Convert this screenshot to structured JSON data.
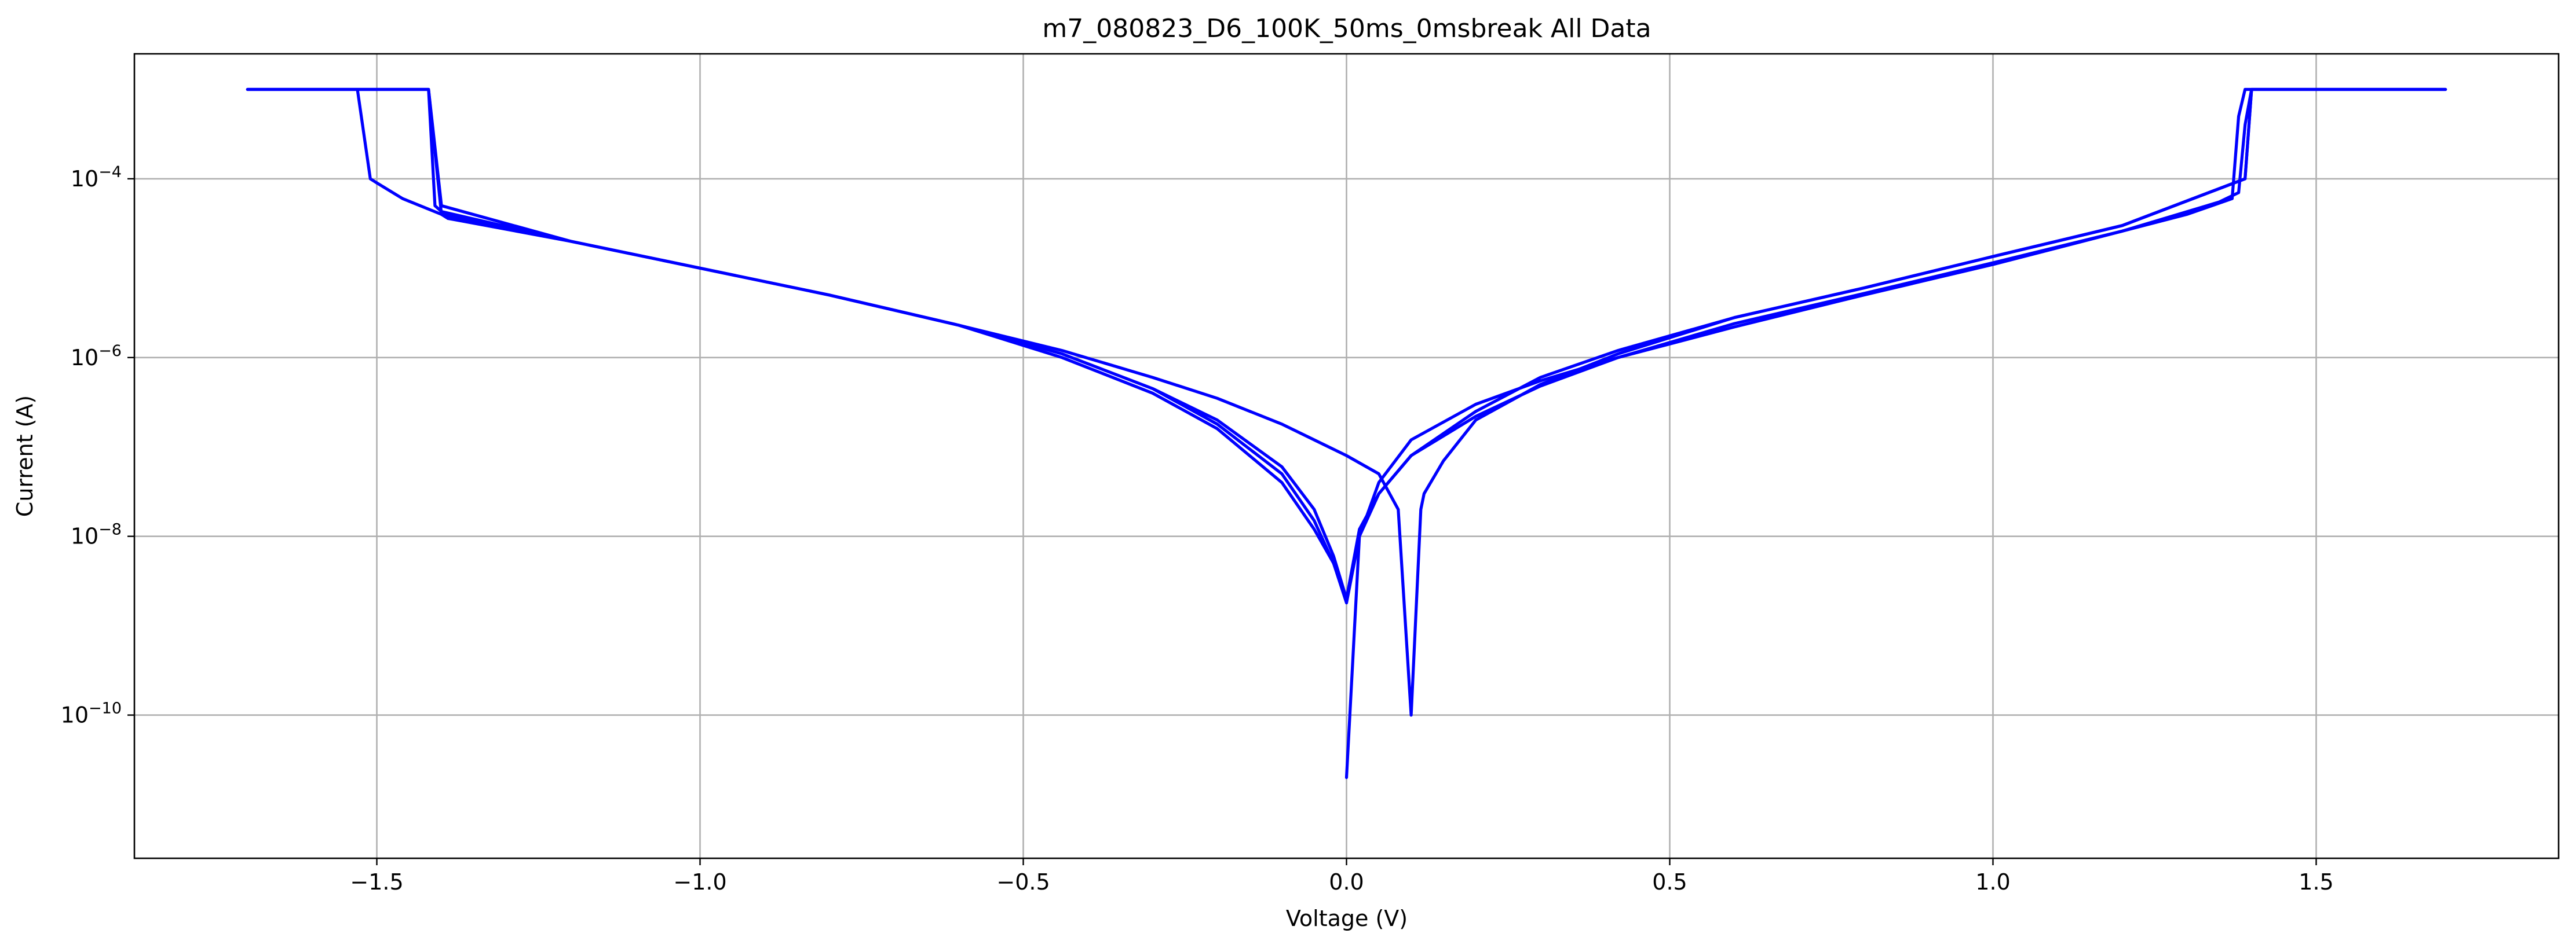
{
  "chart_data": {
    "type": "line",
    "title": "m7_080823_D6_100K_50ms_0msbreak All Data",
    "xlabel": "Voltage (V)",
    "ylabel": "Current (A)",
    "xlim": [
      -1.875,
      1.875
    ],
    "ylim": [
      2.5e-12,
      0.0025
    ],
    "yscale": "log",
    "grid": true,
    "x_ticks": [
      -1.5,
      -1.0,
      -0.5,
      0.0,
      0.5,
      1.0,
      1.5
    ],
    "x_tick_labels": [
      "−1.5",
      "−1.0",
      "−0.5",
      "0.0",
      "0.5",
      "1.0",
      "1.5"
    ],
    "y_ticks": [
      {
        "value": 1e-10,
        "base": "10",
        "exponent": "−10"
      },
      {
        "value": 1e-08,
        "base": "10",
        "exponent": "−8"
      },
      {
        "value": 1e-06,
        "base": "10",
        "exponent": "−6"
      },
      {
        "value": 0.0001,
        "base": "10",
        "exponent": "−4"
      }
    ],
    "series": [
      {
        "color": "#0000ff",
        "x": [
          0.0,
          0.02,
          0.05,
          0.1,
          0.2,
          0.3,
          0.42,
          0.6,
          0.8,
          1.0,
          1.2,
          1.35,
          1.38,
          1.39,
          1.4,
          1.5,
          1.6,
          1.7,
          1.6,
          1.5,
          1.4,
          1.39,
          1.2,
          1.0,
          0.8,
          0.6,
          0.42,
          0.3,
          0.2,
          0.15,
          0.12,
          0.115,
          0.1,
          0.08,
          0.05,
          0.0,
          -0.05,
          -0.1,
          -0.2,
          -0.3,
          -0.44,
          -0.6,
          -0.8,
          -1.0,
          -1.2,
          -1.4,
          -1.46,
          -1.5,
          -1.51,
          -1.53,
          -1.6,
          -1.7,
          -1.6,
          -1.5,
          -1.42,
          -1.4,
          -1.39,
          -1.2,
          -1.0,
          -0.8,
          -0.6,
          -0.44,
          -0.3,
          -0.2,
          -0.1,
          -0.05,
          -0.02,
          0.0
        ],
        "y": [
          1.8e-09,
          1e-08,
          3e-08,
          8e-08,
          2.2e-07,
          4.8e-07,
          1e-06,
          2.4e-06,
          5.2e-06,
          1.15e-05,
          2.6e-05,
          5.5e-05,
          7e-05,
          0.0004,
          0.001,
          0.001,
          0.001,
          0.001,
          0.001,
          0.001,
          0.001,
          0.0001,
          3e-05,
          1.35e-05,
          6e-06,
          2.8e-06,
          1.1e-06,
          5e-07,
          2e-07,
          7e-08,
          3e-08,
          2e-08,
          1e-10,
          2e-08,
          5e-08,
          8e-08,
          1.2e-07,
          1.8e-07,
          3.5e-07,
          6e-07,
          1.2e-06,
          2.3e-06,
          5e-06,
          1e-05,
          2e-05,
          4e-05,
          6e-05,
          9e-05,
          0.0001,
          0.001,
          0.001,
          0.001,
          0.001,
          0.001,
          0.001,
          4e-05,
          3.6e-05,
          2e-05,
          1e-05,
          5e-06,
          2.3e-06,
          1e-06,
          4e-07,
          1.6e-07,
          4e-08,
          1.2e-08,
          5e-09,
          1.8e-09
        ]
      },
      {
        "color": "#0000ff",
        "x": [
          0.0,
          0.02,
          0.05,
          0.1,
          0.2,
          0.3,
          0.42,
          0.6,
          0.8,
          1.0,
          1.2,
          1.3,
          1.37,
          1.38,
          1.39,
          1.4,
          1.5,
          1.6,
          1.7,
          1.6,
          1.5,
          1.4,
          1.39,
          1.2,
          1.0,
          0.8,
          0.6,
          0.42,
          0.3,
          0.2,
          0.1,
          0.05,
          0.02,
          0.0,
          -0.02,
          -0.05,
          -0.1,
          -0.2,
          -0.3,
          -0.44,
          -0.6,
          -0.8,
          -1.0,
          -1.2,
          -1.4,
          -1.41,
          -1.42,
          -1.46,
          -1.5,
          -1.6,
          -1.7,
          -1.6,
          -1.5,
          -1.46,
          -1.42,
          -1.4,
          -1.2,
          -1.0,
          -0.8,
          -0.6,
          -0.44,
          -0.3,
          -0.2,
          -0.1,
          -0.05,
          -0.02,
          0.0
        ],
        "y": [
          2e-11,
          1e-08,
          4e-08,
          1.2e-07,
          3e-07,
          5.5e-07,
          1e-06,
          2.2e-06,
          5e-06,
          1.1e-05,
          2.6e-05,
          4e-05,
          6e-05,
          0.0005,
          0.001,
          0.001,
          0.001,
          0.001,
          0.001,
          0.001,
          0.001,
          0.001,
          0.0001,
          3e-05,
          1.35e-05,
          6e-06,
          2.8e-06,
          1.2e-06,
          6e-07,
          2.5e-07,
          8e-08,
          3e-08,
          1.2e-08,
          2e-09,
          6e-09,
          2e-08,
          6e-08,
          2e-07,
          4.5e-07,
          1.1e-06,
          2.3e-06,
          5e-06,
          1e-05,
          2e-05,
          4.3e-05,
          5e-05,
          0.001,
          0.001,
          0.001,
          0.001,
          0.001,
          0.001,
          0.001,
          0.001,
          0.001,
          5e-05,
          2e-05,
          1e-05,
          5e-06,
          2.3e-06,
          1.1e-06,
          4.5e-07,
          1.8e-07,
          5e-08,
          1.5e-08,
          5e-09,
          2e-09
        ]
      }
    ]
  }
}
